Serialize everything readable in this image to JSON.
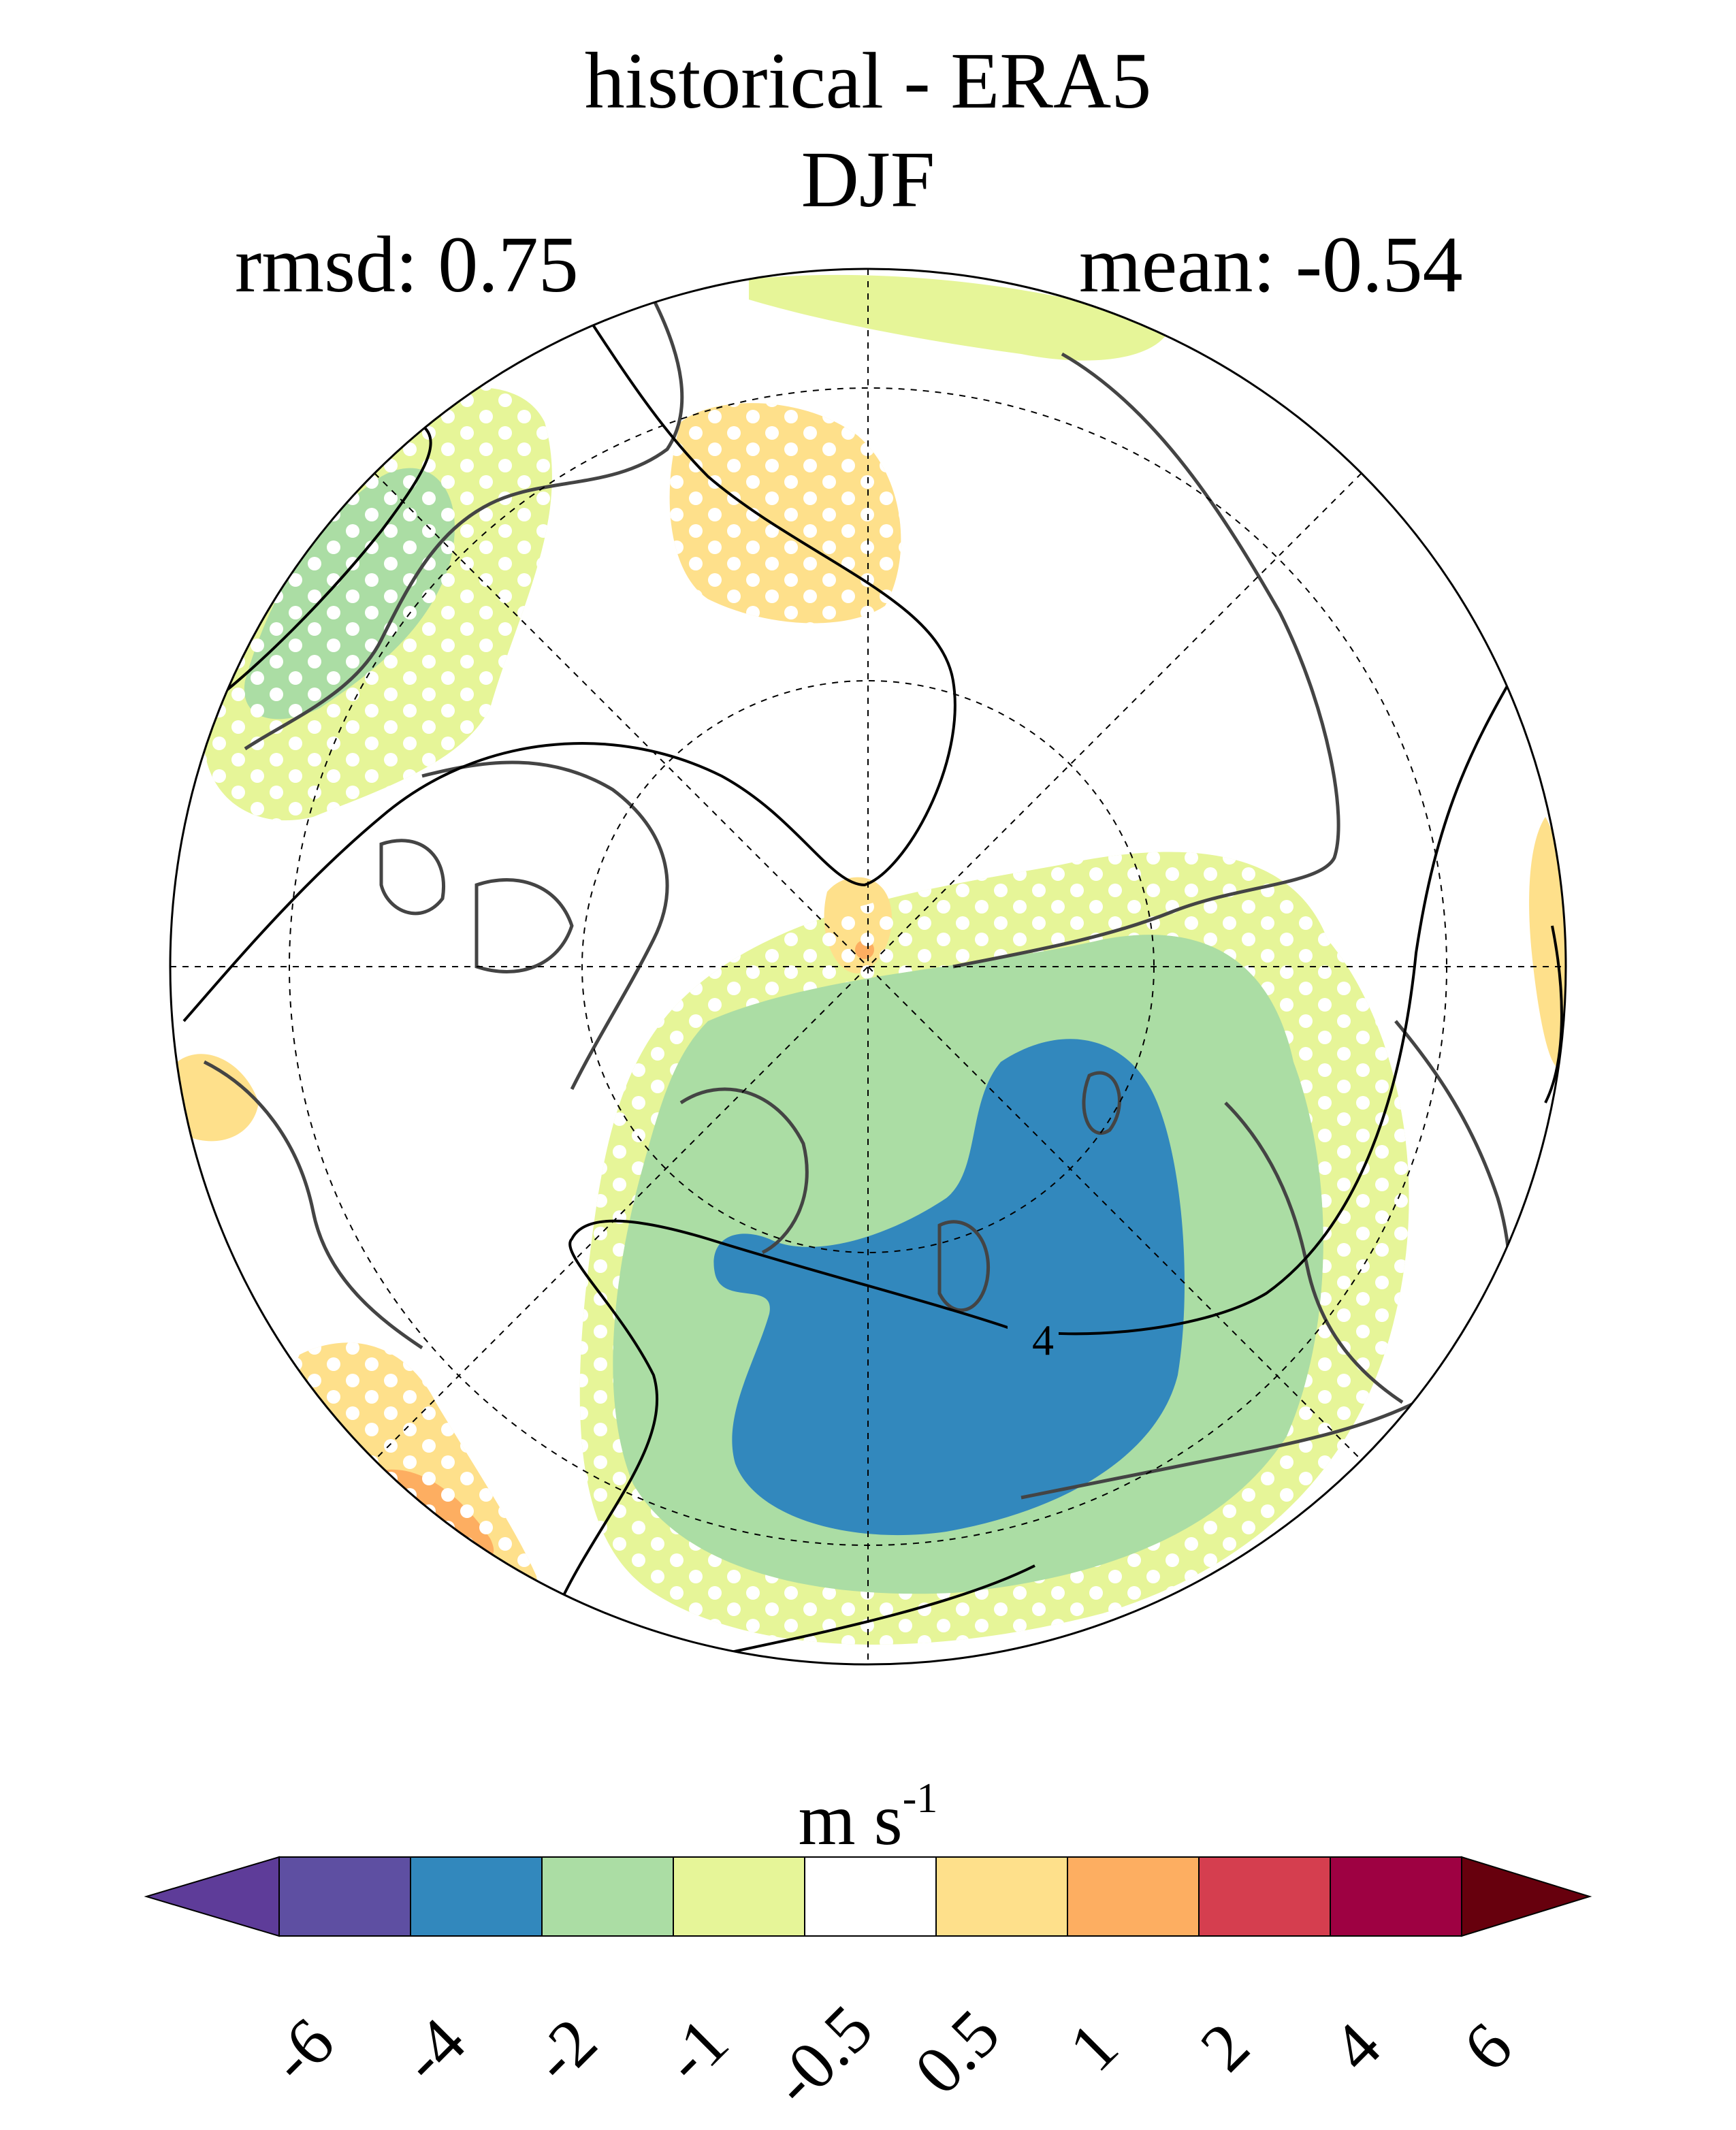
{
  "title": {
    "line1": "historical - ERA5",
    "line2": "DJF"
  },
  "stats": {
    "rmsd": "rmsd: 0.75",
    "mean": "mean: -0.54"
  },
  "map": {
    "projection": "north polar stereographic",
    "contour_label": "4",
    "stippling": "white dots",
    "anomaly_regions": [
      {
        "name": "north-atlantic-arctic",
        "category": "-4 to -2"
      },
      {
        "name": "greenland-sea-nordic",
        "category": "-2 to -1"
      },
      {
        "name": "north-pacific-west",
        "category": "-2 to -1"
      },
      {
        "name": "bering-strait",
        "category": "0.5 to 1"
      }
    ]
  },
  "colorbar": {
    "unit_main": "m s",
    "unit_sup": "-1",
    "tick_labels": [
      "-6",
      "-4",
      "-2",
      "-1",
      "-0.5",
      "0.5",
      "1",
      "2",
      "4",
      "6"
    ],
    "colors": [
      "#5e3c99",
      "#5e4fa2",
      "#3288bd",
      "#abdda4",
      "#e6f598",
      "#ffffff",
      "#fee08b",
      "#fdae61",
      "#d53e4f",
      "#9e0142",
      "#67000d"
    ]
  }
}
